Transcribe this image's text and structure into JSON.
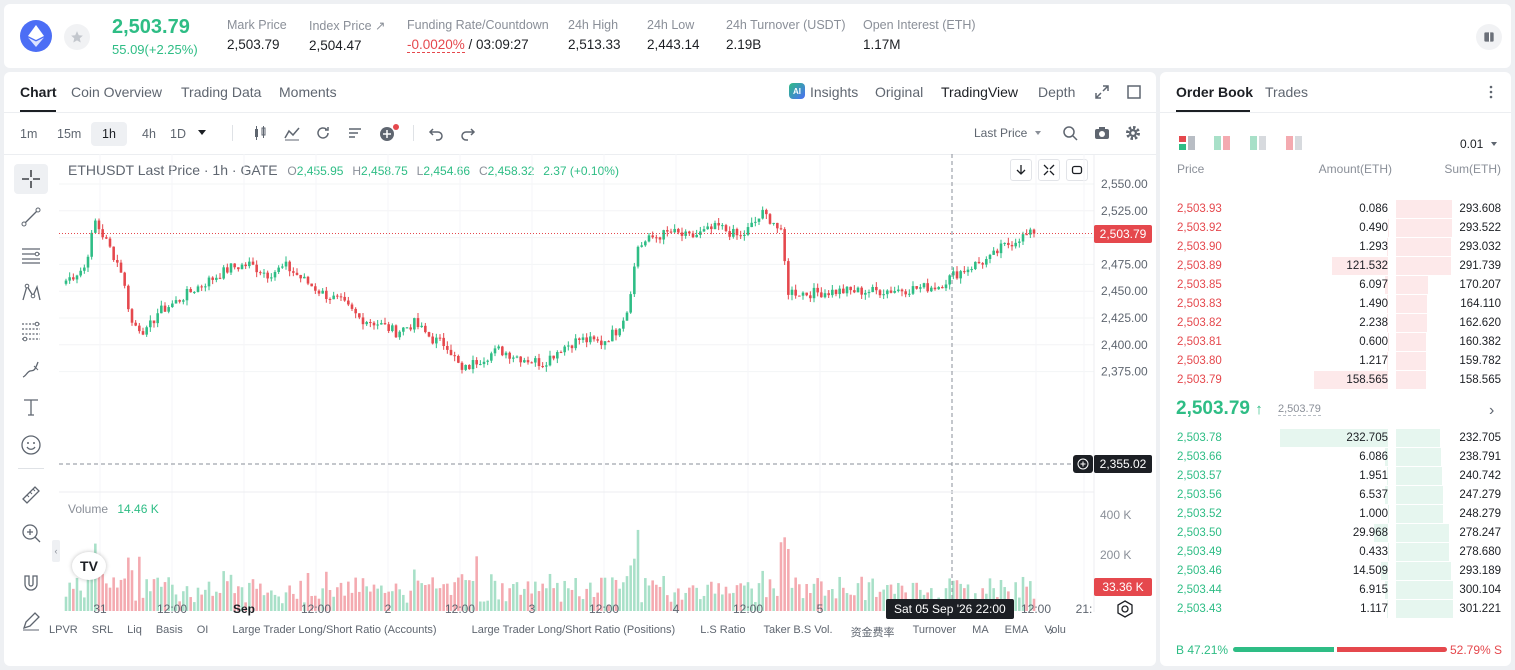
{
  "header": {
    "price": "2,503.79",
    "change": "55.09(+2.25%)",
    "stats": [
      {
        "label": "Mark Price",
        "value": "2,503.79"
      },
      {
        "label": "Index Price ↗",
        "value": "2,504.47"
      },
      {
        "label": "Funding Rate/Countdown",
        "value_neg": "-0.0020%",
        "value": " / 03:09:27"
      },
      {
        "label": "24h High",
        "value": "2,513.33"
      },
      {
        "label": "24h Low",
        "value": "2,443.14"
      },
      {
        "label": "24h Turnover (USDT)",
        "value": "2.19B"
      },
      {
        "label": "Open Interest (ETH)",
        "value": "1.17M"
      }
    ]
  },
  "chart_tabs": [
    "Chart",
    "Coin Overview",
    "Trading Data",
    "Moments"
  ],
  "chart_views": {
    "insights": "Insights",
    "original": "Original",
    "tradingview": "TradingView",
    "depth": "Depth",
    "ai_badge": "AI"
  },
  "timeframes": [
    "1m",
    "15m",
    "1h",
    "4h",
    "1D"
  ],
  "price_type": "Last Price",
  "legend": {
    "symbol": "ETHUSDT Last Price · 1h · GATE",
    "o_label": "O",
    "o": "2,455.95",
    "h_label": "H",
    "h": "2,458.75",
    "l_label": "L",
    "l": "2,454.66",
    "c_label": "C",
    "c": "2,458.32",
    "chg": "2.37 (+0.10%)"
  },
  "y_ticks": [
    "2,550.00",
    "2,525.00",
    "2,500.00",
    "2,475.00",
    "2,450.00",
    "2,425.00",
    "2,400.00",
    "2,375.00"
  ],
  "y_ticks_values": [
    2550,
    2525,
    2500,
    2475,
    2450,
    2425,
    2400,
    2375
  ],
  "price_tag": "2,503.79",
  "cross_tag": "2,355.02",
  "volume": {
    "label": "Volume",
    "value": "14.46 K",
    "ticks": [
      "400 K",
      "200 K"
    ],
    "tag": "33.36 K"
  },
  "x_ticks": [
    "31",
    "12:00",
    "Sep",
    "12:00",
    "2",
    "12:00",
    "3",
    "12:00",
    "4",
    "12:00",
    "5",
    "12:00",
    "21:"
  ],
  "crosshair_time": "Sat 05 Sep '26   22:00",
  "indicators": [
    "LPVR",
    "SRL",
    "Liq",
    "Basis",
    "OI",
    "Large Trader Long/Short Ratio (Accounts)",
    "Large Trader Long/Short Ratio (Positions)",
    "L.S Ratio",
    "Taker B.S Vol.",
    "资金费率",
    "Turnover",
    "MA",
    "EMA",
    "Volu"
  ],
  "orderbook": {
    "tabs": [
      "Order Book",
      "Trades"
    ],
    "precision": "0.01",
    "cols": [
      "Price",
      "Amount(ETH)",
      "Sum(ETH)"
    ],
    "asks": [
      {
        "price": "2,503.93",
        "amount": "0.086",
        "sum": "293.608",
        "amt": 0.086,
        "s": 293.608
      },
      {
        "price": "2,503.92",
        "amount": "0.490",
        "sum": "293.522",
        "amt": 0.49,
        "s": 293.522
      },
      {
        "price": "2,503.90",
        "amount": "1.293",
        "sum": "293.032",
        "amt": 1.293,
        "s": 293.032
      },
      {
        "price": "2,503.89",
        "amount": "121.532",
        "sum": "291.739",
        "amt": 121.532,
        "s": 291.739
      },
      {
        "price": "2,503.85",
        "amount": "6.097",
        "sum": "170.207",
        "amt": 6.097,
        "s": 170.207
      },
      {
        "price": "2,503.83",
        "amount": "1.490",
        "sum": "164.110",
        "amt": 1.49,
        "s": 164.11
      },
      {
        "price": "2,503.82",
        "amount": "2.238",
        "sum": "162.620",
        "amt": 2.238,
        "s": 162.62
      },
      {
        "price": "2,503.81",
        "amount": "0.600",
        "sum": "160.382",
        "amt": 0.6,
        "s": 160.382
      },
      {
        "price": "2,503.80",
        "amount": "1.217",
        "sum": "159.782",
        "amt": 1.217,
        "s": 159.782
      },
      {
        "price": "2,503.79",
        "amount": "158.565",
        "sum": "158.565",
        "amt": 158.565,
        "s": 158.565
      }
    ],
    "mid_price": "2,503.79",
    "mid_arrow": "↑",
    "mark_price": "2,503.79",
    "bids": [
      {
        "price": "2,503.78",
        "amount": "232.705",
        "sum": "232.705",
        "amt": 232.705,
        "s": 232.705
      },
      {
        "price": "2,503.66",
        "amount": "6.086",
        "sum": "238.791",
        "amt": 6.086,
        "s": 238.791
      },
      {
        "price": "2,503.57",
        "amount": "1.951",
        "sum": "240.742",
        "amt": 1.951,
        "s": 240.742
      },
      {
        "price": "2,503.56",
        "amount": "6.537",
        "sum": "247.279",
        "amt": 6.537,
        "s": 247.279
      },
      {
        "price": "2,503.52",
        "amount": "1.000",
        "sum": "248.279",
        "amt": 1.0,
        "s": 248.279
      },
      {
        "price": "2,503.50",
        "amount": "29.968",
        "sum": "278.247",
        "amt": 29.968,
        "s": 278.247
      },
      {
        "price": "2,503.49",
        "amount": "0.433",
        "sum": "278.680",
        "amt": 0.433,
        "s": 278.68
      },
      {
        "price": "2,503.46",
        "amount": "14.509",
        "sum": "293.189",
        "amt": 14.509,
        "s": 293.189
      },
      {
        "price": "2,503.44",
        "amount": "6.915",
        "sum": "300.104",
        "amt": 6.915,
        "s": 300.104
      },
      {
        "price": "2,503.43",
        "amount": "1.117",
        "sum": "301.221",
        "amt": 1.117,
        "s": 301.221
      }
    ],
    "buy_label": "B",
    "buy_pct": "47.21%",
    "sell_pct": "52.79%",
    "sell_label": "S",
    "buy_ratio": 0.4721
  },
  "colors": {
    "up": "#2ebd85",
    "down": "#e5484d",
    "up_vol": "#a8e0c8",
    "down_vol": "#f4aab0"
  }
}
